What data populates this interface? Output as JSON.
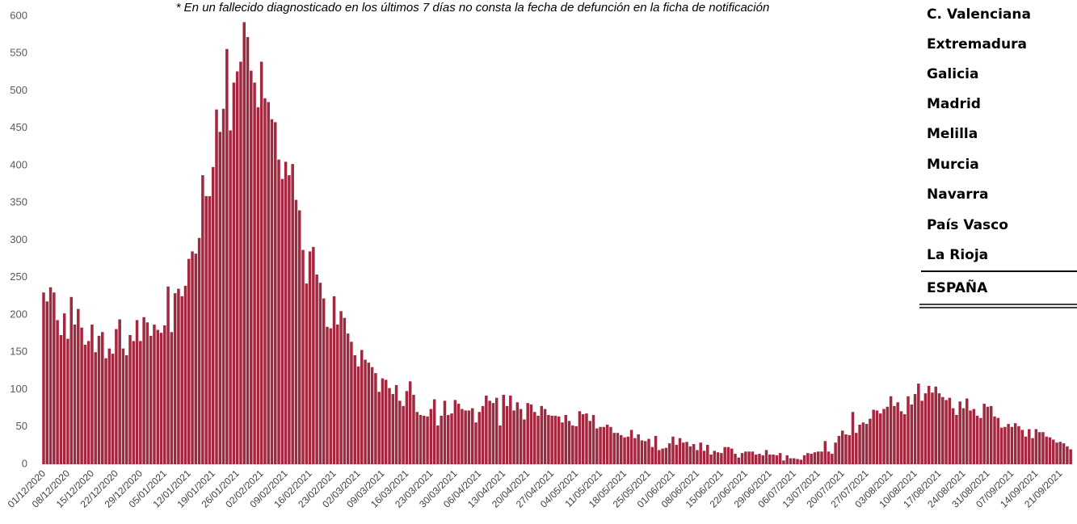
{
  "chart_data": {
    "type": "bar",
    "annotation": "* En un fallecido diagnosticado en los últimos 7 días no consta la fecha de defunción en la ficha de notificación",
    "color": "#a3283f",
    "ylim": [
      0,
      600
    ],
    "yticks": [
      0,
      50,
      100,
      150,
      200,
      250,
      300,
      350,
      400,
      450,
      500,
      550,
      600
    ],
    "categories": [
      "01/12/2020",
      null,
      null,
      null,
      null,
      null,
      null,
      "08/12/2020",
      null,
      null,
      null,
      null,
      null,
      null,
      "15/12/2020",
      null,
      null,
      null,
      null,
      null,
      null,
      "22/12/2020",
      null,
      null,
      null,
      null,
      null,
      null,
      "29/12/2020",
      null,
      null,
      null,
      null,
      null,
      null,
      "05/01/2021",
      null,
      null,
      null,
      null,
      null,
      null,
      "12/01/2021",
      null,
      null,
      null,
      null,
      null,
      null,
      "19/01/2021",
      null,
      null,
      null,
      null,
      null,
      null,
      "26/01/2021",
      null,
      null,
      null,
      null,
      null,
      null,
      "02/02/2021",
      null,
      null,
      null,
      null,
      null,
      null,
      "09/02/2021",
      null,
      null,
      null,
      null,
      null,
      null,
      "16/02/2021",
      null,
      null,
      null,
      null,
      null,
      null,
      "23/02/2021",
      null,
      null,
      null,
      null,
      null,
      null,
      "02/03/2021",
      null,
      null,
      null,
      null,
      null,
      null,
      "09/03/2021",
      null,
      null,
      null,
      null,
      null,
      null,
      "16/03/2021",
      null,
      null,
      null,
      null,
      null,
      null,
      "23/03/2021",
      null,
      null,
      null,
      null,
      null,
      null,
      "30/03/2021",
      null,
      null,
      null,
      null,
      null,
      null,
      "06/04/2021",
      null,
      null,
      null,
      null,
      null,
      null,
      "13/04/2021",
      null,
      null,
      null,
      null,
      null,
      null,
      "20/04/2021",
      null,
      null,
      null,
      null,
      null,
      null,
      "27/04/2021",
      null,
      null,
      null,
      null,
      null,
      null,
      "04/05/2021",
      null,
      null,
      null,
      null,
      null,
      null,
      "11/05/2021",
      null,
      null,
      null,
      null,
      null,
      null,
      "18/05/2021",
      null,
      null,
      null,
      null,
      null,
      null,
      "25/05/2021",
      null,
      null,
      null,
      null,
      null,
      null,
      "01/06/2021",
      null,
      null,
      null,
      null,
      null,
      null,
      "08/06/2021",
      null,
      null,
      null,
      null,
      null,
      null,
      "15/06/2021",
      null,
      null,
      null,
      null,
      null,
      null,
      "22/06/2021",
      null,
      null,
      null,
      null,
      null,
      null,
      "29/06/2021",
      null,
      null,
      null,
      null,
      null,
      null,
      "06/07/2021",
      null,
      null,
      null,
      null,
      null,
      null,
      "13/07/2021",
      null,
      null,
      null,
      null,
      null,
      null,
      "20/07/2021",
      null,
      null,
      null,
      null,
      null,
      null,
      "27/07/2021",
      null,
      null,
      null,
      null,
      null,
      null,
      "03/08/2021",
      null,
      null,
      null,
      null,
      null,
      null,
      "10/08/2021",
      null,
      null,
      null,
      null,
      null,
      null,
      "17/08/2021",
      null,
      null,
      null,
      null,
      null,
      null,
      "24/08/2021",
      null,
      null,
      null,
      null,
      null,
      null,
      "31/08/2021",
      null,
      null,
      null,
      null,
      null,
      null,
      "07/09/2021",
      null,
      null,
      null,
      null,
      null,
      null,
      "14/09/2021",
      null,
      null,
      null,
      null,
      null,
      null,
      "21/09/2021",
      null,
      null,
      null
    ],
    "values": [
      230,
      218,
      237,
      230,
      193,
      173,
      202,
      168,
      224,
      187,
      208,
      183,
      160,
      165,
      187,
      150,
      172,
      177,
      142,
      155,
      148,
      181,
      194,
      155,
      146,
      173,
      165,
      193,
      165,
      197,
      190,
      172,
      187,
      180,
      176,
      186,
      238,
      177,
      229,
      235,
      225,
      239,
      275,
      285,
      282,
      303,
      387,
      359,
      359,
      398,
      475,
      445,
      476,
      556,
      447,
      511,
      526,
      539,
      592,
      572,
      527,
      511,
      478,
      539,
      490,
      485,
      462,
      458,
      408,
      382,
      405,
      387,
      402,
      354,
      340,
      287,
      242,
      285,
      291,
      254,
      243,
      222,
      184,
      182,
      225,
      187,
      205,
      196,
      175,
      164,
      146,
      131,
      153,
      140,
      136,
      130,
      122,
      97,
      115,
      113,
      102,
      94,
      106,
      85,
      78,
      98,
      111,
      93,
      70,
      66,
      65,
      64,
      74,
      87,
      52,
      65,
      85,
      66,
      68,
      86,
      81,
      74,
      72,
      72,
      75,
      56,
      70,
      78,
      92,
      85,
      82,
      89,
      52,
      93,
      78,
      92,
      72,
      83,
      74,
      60,
      82,
      80,
      70,
      65,
      78,
      74,
      66,
      65,
      65,
      64,
      56,
      66,
      58,
      52,
      51,
      71,
      67,
      68,
      58,
      66,
      48,
      50,
      50,
      53,
      50,
      42,
      42,
      39,
      36,
      37,
      46,
      35,
      40,
      32,
      31,
      34,
      23,
      38,
      19,
      21,
      22,
      28,
      37,
      26,
      35,
      29,
      30,
      24,
      27,
      19,
      29,
      18,
      26,
      13,
      18,
      16,
      15,
      23,
      23,
      21,
      14,
      9,
      15,
      17,
      17,
      17,
      13,
      14,
      12,
      19,
      13,
      13,
      12,
      15,
      5,
      12,
      8,
      8,
      7,
      6,
      12,
      15,
      14,
      16,
      17,
      17,
      31,
      17,
      14,
      29,
      38,
      45,
      40,
      39,
      70,
      42,
      53,
      56,
      54,
      61,
      73,
      72,
      68,
      74,
      77,
      91,
      78,
      83,
      71,
      67,
      91,
      80,
      94,
      108,
      85,
      95,
      105,
      96,
      104,
      95,
      90,
      86,
      89,
      75,
      66,
      84,
      75,
      88,
      72,
      74,
      65,
      62,
      81,
      77,
      78,
      64,
      62,
      49,
      50,
      54,
      50,
      55,
      51,
      46,
      37,
      47,
      35,
      47,
      43,
      43,
      37,
      36,
      33,
      29,
      30,
      28,
      24,
      20
    ]
  },
  "side_table": {
    "rows": [
      "C. Valenciana",
      "Extremadura",
      "Galicia",
      "Madrid",
      "Melilla",
      "Murcia",
      "Navarra",
      "País Vasco",
      "La Rioja"
    ],
    "total": "ESPAÑA"
  }
}
